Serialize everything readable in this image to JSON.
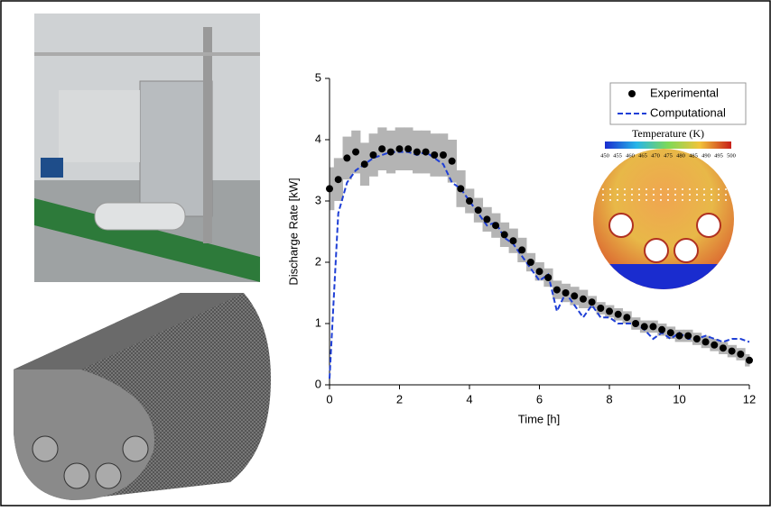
{
  "chart_data": {
    "type": "line",
    "x_label": "Time [h]",
    "y_label": "Discharge Rate [kW]",
    "x": [
      0,
      0.25,
      0.5,
      0.75,
      1,
      1.25,
      1.5,
      1.75,
      2,
      2.25,
      2.5,
      2.75,
      3,
      3.25,
      3.5,
      3.75,
      4,
      4.25,
      4.5,
      4.75,
      5,
      5.25,
      5.5,
      5.75,
      6,
      6.25,
      6.5,
      6.75,
      7,
      7.25,
      7.5,
      7.75,
      8,
      8.25,
      8.5,
      8.75,
      9,
      9.25,
      9.5,
      9.75,
      10,
      10.25,
      10.5,
      10.75,
      11,
      11.25,
      11.5,
      11.75,
      12
    ],
    "series": [
      {
        "name": "Experimental",
        "color": "#000000",
        "band_color": "#b4b4b4",
        "values": [
          3.2,
          3.35,
          3.7,
          3.8,
          3.6,
          3.75,
          3.85,
          3.8,
          3.85,
          3.85,
          3.8,
          3.8,
          3.75,
          3.75,
          3.65,
          3.2,
          3.0,
          2.85,
          2.7,
          2.6,
          2.45,
          2.35,
          2.2,
          2.0,
          1.85,
          1.75,
          1.55,
          1.5,
          1.45,
          1.4,
          1.35,
          1.25,
          1.2,
          1.15,
          1.1,
          1.0,
          0.95,
          0.95,
          0.9,
          0.85,
          0.8,
          0.8,
          0.75,
          0.7,
          0.65,
          0.6,
          0.55,
          0.5,
          0.4
        ],
        "errors": [
          0.35,
          0.35,
          0.35,
          0.35,
          0.35,
          0.35,
          0.35,
          0.35,
          0.35,
          0.35,
          0.35,
          0.35,
          0.35,
          0.35,
          0.35,
          0.3,
          0.2,
          0.2,
          0.2,
          0.2,
          0.2,
          0.2,
          0.2,
          0.15,
          0.15,
          0.15,
          0.15,
          0.15,
          0.15,
          0.15,
          0.1,
          0.1,
          0.1,
          0.1,
          0.1,
          0.1,
          0.1,
          0.1,
          0.1,
          0.1,
          0.1,
          0.1,
          0.1,
          0.1,
          0.1,
          0.1,
          0.1,
          0.1,
          0.1
        ]
      },
      {
        "name": "Computational",
        "color": "#1f3fd6",
        "values": [
          0.1,
          2.8,
          3.3,
          3.5,
          3.6,
          3.7,
          3.75,
          3.8,
          3.8,
          3.8,
          3.75,
          3.8,
          3.7,
          3.6,
          3.3,
          3.2,
          3.0,
          2.8,
          2.6,
          2.65,
          2.4,
          2.3,
          2.1,
          1.9,
          1.7,
          1.8,
          1.2,
          1.5,
          1.3,
          1.1,
          1.3,
          1.1,
          1.1,
          1.0,
          1.0,
          1.0,
          0.9,
          0.75,
          0.85,
          0.75,
          0.85,
          0.75,
          0.75,
          0.8,
          0.75,
          0.7,
          0.75,
          0.75,
          0.7
        ]
      }
    ],
    "xlim": [
      0,
      12
    ],
    "xticks": [
      0,
      2,
      4,
      6,
      8,
      10,
      12
    ],
    "ylim": [
      0,
      5
    ],
    "yticks": [
      0,
      1,
      2,
      3,
      4,
      5
    ],
    "legend": "upper right",
    "inset": {
      "title": "Temperature (K)",
      "ticks": [
        450,
        455,
        460,
        465,
        470,
        475,
        480,
        485,
        490,
        495,
        500
      ]
    }
  }
}
